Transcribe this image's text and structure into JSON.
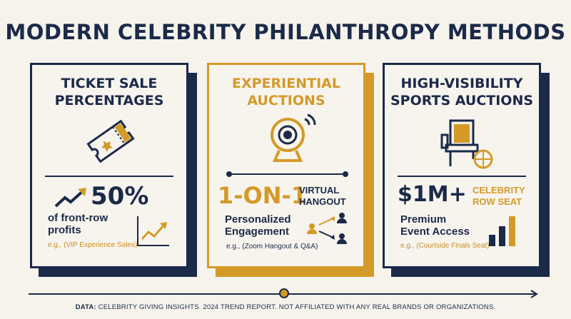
{
  "title": "MODERN CELEBRITY PHILANTHROPY METHODS",
  "cards": [
    {
      "title_line1": "TICKET SALE",
      "title_line2": "PERCENTAGES",
      "big_value": "50%",
      "desc_line1": "of front-row",
      "desc_line2": "profits",
      "example": "e.g., (VIP Experience Sales)",
      "icon": "ticket-icon"
    },
    {
      "title_line1": "EXPERIENTIAL",
      "title_line2": "AUCTIONS",
      "big_value": "1-ON-1",
      "tag_line1": "VIRTUAL",
      "tag_line2": "HANGOUT",
      "desc_line1": "Personalized",
      "desc_line2": "Engagement",
      "example": "e.g., (Zoom Hangout & Q&A)",
      "icon": "webcam-icon"
    },
    {
      "title_line1": "HIGH-VISIBILITY",
      "title_line2": "SPORTS AUCTIONS",
      "big_value": "$1M+",
      "tag_line1": "CELEBRITY",
      "tag_line2": "ROW SEAT",
      "desc_line1": "Premium",
      "desc_line2": "Event Access",
      "example": "e.g., (Courtside Finals Seat)",
      "icon": "stadium-seat-icon"
    }
  ],
  "footer": {
    "label": "DATA:",
    "text": "CELEBRITY GIVING INSIGHTS. 2024 TREND REPORT. NOT AFFILIATED WITH ANY REAL BRANDS OR ORGANIZATIONS."
  },
  "colors": {
    "navy": "#1b2a49",
    "gold": "#d49a28",
    "background": "#f6f3ec"
  }
}
